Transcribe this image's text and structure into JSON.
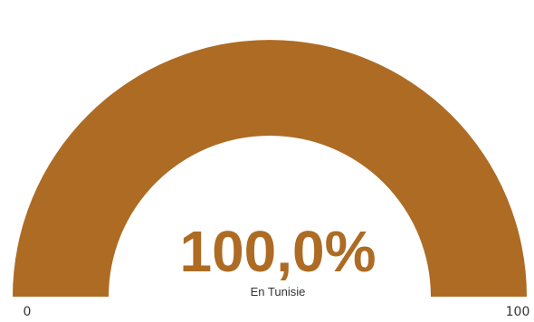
{
  "chart_data": {
    "type": "gauge",
    "value": 100.0,
    "value_text": "100,0%",
    "label": "En Tunisie",
    "min": 0,
    "max": 100,
    "min_label": "0",
    "max_label": "100",
    "colors": {
      "fill": "#ad6b24",
      "track": "#e6e6e6",
      "value_text": "#ad6b24",
      "label_text": "#333333",
      "axis_text": "#333333"
    }
  }
}
